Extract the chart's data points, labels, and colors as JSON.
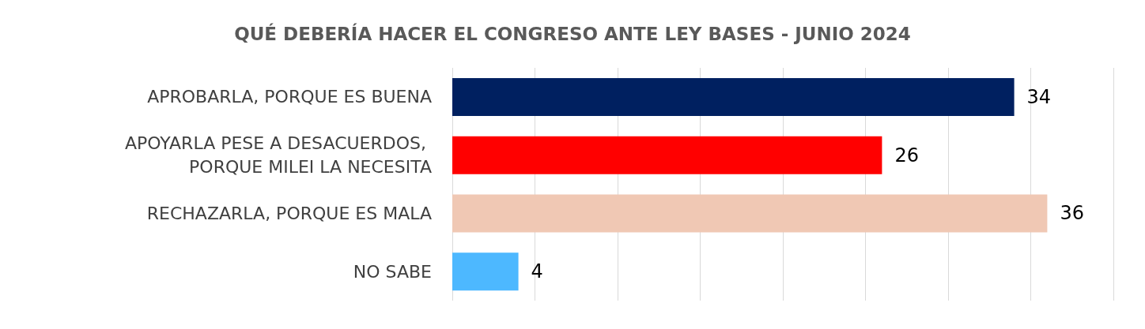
{
  "chart_data": {
    "type": "bar",
    "orientation": "horizontal",
    "title": "QUÉ DEBERÍA HACER EL CONGRESO ANTE LEY BASES - JUNIO 2024",
    "categories": [
      "APROBARLA, PORQUE ES BUENA",
      "APOYARLA PESE A DESACUERDOS, PORQUE MILEI LA NECESITA",
      "RECHAZARLA, PORQUE ES MALA",
      "NO SABE"
    ],
    "values": [
      34,
      26,
      36,
      4
    ],
    "colors": [
      "#002060",
      "#ff0000",
      "#f0c8b4",
      "#4db8ff"
    ],
    "xlim": [
      0,
      40
    ],
    "xticks": [
      {
        "value": 0,
        "label": null
      },
      {
        "value": 5,
        "label": null
      },
      {
        "value": 10,
        "label": null
      },
      {
        "value": 15,
        "label": null
      },
      {
        "value": 20,
        "label": null
      },
      {
        "value": 25,
        "label": null
      },
      {
        "value": 30,
        "label": null
      },
      {
        "value": 35,
        "label": null
      },
      {
        "value": 40,
        "label": null
      }
    ],
    "grid": "x",
    "tick_labels": "y",
    "data_labels": true
  }
}
